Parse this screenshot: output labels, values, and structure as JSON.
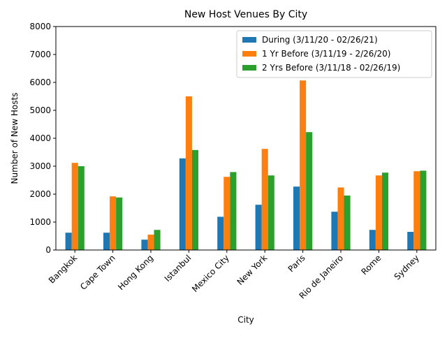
{
  "chart_data": {
    "type": "bar",
    "title": "New Host Venues By City",
    "xlabel": "City",
    "ylabel": "Number of New Hosts",
    "ylim": [
      0,
      8000
    ],
    "yticks": [
      0,
      1000,
      2000,
      3000,
      4000,
      5000,
      6000,
      7000,
      8000
    ],
    "grid": false,
    "legend_position": "top-right",
    "categories": [
      "Bangkok",
      "Cape Town",
      "Hong Kong",
      "Istanbul",
      "Mexico City",
      "New York",
      "Paris",
      "Rio de Janeiro",
      "Rome",
      "Sydney"
    ],
    "series": [
      {
        "name": "During (3/11/20 - 02/26/21)",
        "color": "#1f77b4",
        "values": [
          620,
          620,
          370,
          3280,
          1190,
          1620,
          2270,
          1370,
          720,
          650
        ]
      },
      {
        "name": "1 Yr Before (3/11/19 - 2/26/20)",
        "color": "#ff7f0e",
        "values": [
          3120,
          1920,
          550,
          5500,
          2620,
          3620,
          6070,
          2240,
          2670,
          2820
        ]
      },
      {
        "name": "2 Yrs Before (3/11/18 - 02/26/19)",
        "color": "#2ca02c",
        "values": [
          3000,
          1880,
          720,
          3580,
          2790,
          2670,
          4220,
          1950,
          2770,
          2840
        ]
      }
    ]
  }
}
